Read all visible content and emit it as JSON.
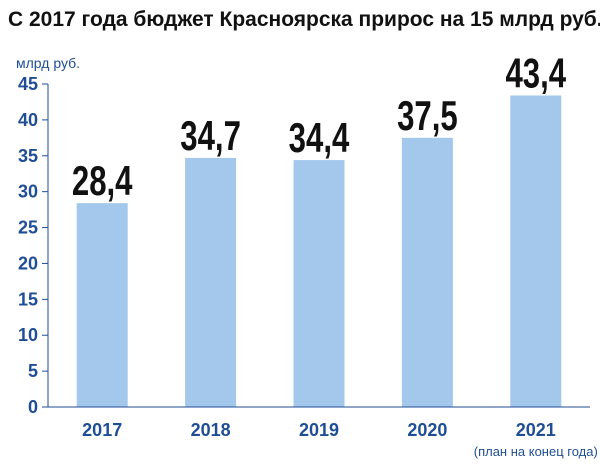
{
  "title": "С 2017 года бюджет Красноярска прирос на 15 млрд руб.",
  "chart_data": {
    "type": "bar",
    "title": "С 2017 года бюджет Красноярска прирос на 15 млрд руб.",
    "unit_label": "млрд руб.",
    "categories": [
      "2017",
      "2018",
      "2019",
      "2020",
      "2021"
    ],
    "values": [
      28.4,
      34.7,
      34.4,
      37.5,
      43.4
    ],
    "value_labels": [
      "28,4",
      "34,7",
      "34,4",
      "37,5",
      "43,4"
    ],
    "category_note": "(план на конец года)",
    "ylim": [
      0,
      45
    ],
    "yticks": [
      0,
      5,
      10,
      15,
      20,
      25,
      30,
      35,
      40,
      45
    ],
    "grid": false,
    "legend": "none",
    "colors": {
      "bar": "#a3c8ec",
      "axis_text": "#1f4e96",
      "value_text": "#111111",
      "axis_line": "#1f4e96"
    }
  }
}
